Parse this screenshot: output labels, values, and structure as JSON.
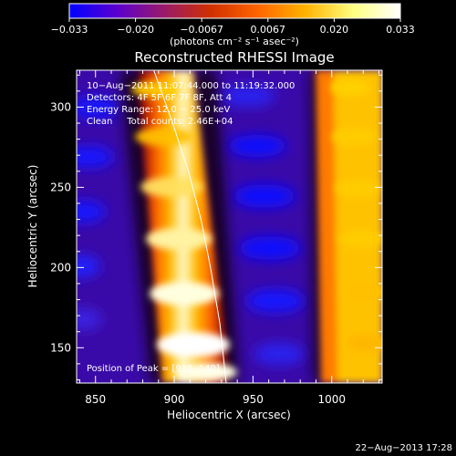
{
  "chart_data": {
    "type": "heatmap",
    "title": "Reconstructed RHESSI Image",
    "xlabel": "Heliocentric X (arcsec)",
    "ylabel": "Heliocentric Y (arcsec)",
    "xlim": [
      838,
      1032
    ],
    "ylim": [
      128,
      323
    ],
    "x_ticks": [
      850,
      900,
      950,
      1000
    ],
    "y_ticks": [
      150,
      200,
      250,
      300
    ],
    "colorbar": {
      "min": -0.033,
      "max": 0.033,
      "ticks": [
        "−0.033",
        "−0.020",
        "−0.0067",
        "0.0067",
        "0.020",
        "0.033"
      ],
      "unit_label": "(photons cm⁻² s⁻¹ asec⁻²)",
      "colormap": [
        "#0000ff",
        "#5a00d0",
        "#9a1a6a",
        "#d03000",
        "#ff6600",
        "#ffb300",
        "#ffff80",
        "#ffffff"
      ]
    },
    "annotations": [
      "10−Aug−2011 11:07:44.000 to 11:19:32.000",
      "Detectors: 4F 5F 6F 7F 8F, Att 4",
      "Energy Range: 12.0 − 25.0 keV",
      "Clean     Total counts: 2.46E+04",
      "Position of Peak = [930, 140]"
    ],
    "limb": [
      [
        887,
        323
      ],
      [
        899,
        290
      ],
      [
        909,
        260
      ],
      [
        917,
        230
      ],
      [
        923,
        200
      ],
      [
        929,
        165
      ],
      [
        933,
        128
      ]
    ]
  },
  "footer": {
    "timestamp": "22−Aug−2013 17:28"
  }
}
